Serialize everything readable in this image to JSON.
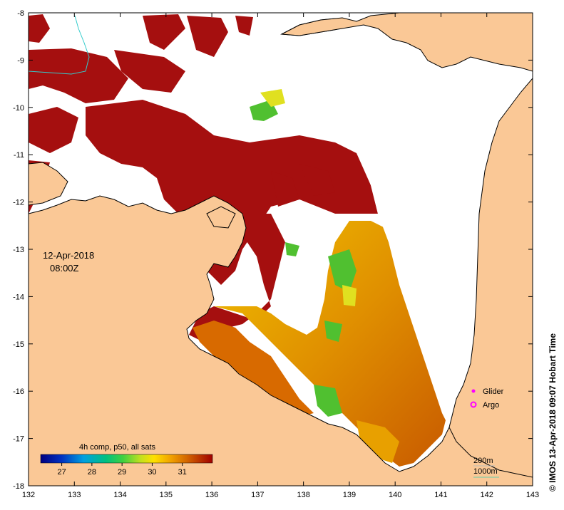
{
  "map": {
    "date": "12-Apr-2018",
    "time": "08:00Z",
    "lon_ticks": [
      "132",
      "133",
      "134",
      "135",
      "136",
      "137",
      "138",
      "139",
      "140",
      "141",
      "142",
      "143"
    ],
    "lat_ticks": [
      "-8",
      "-9",
      "-10",
      "-11",
      "-12",
      "-13",
      "-14",
      "-15",
      "-16",
      "-17",
      "-18"
    ],
    "lon_range": [
      132,
      143
    ],
    "lat_range": [
      -18,
      -8
    ],
    "colors": {
      "land": "#fac896",
      "sea_no_data": "#ffffff",
      "hot": "#a50f0f"
    }
  },
  "colorbar": {
    "title": "4h comp, p50, all sats",
    "ticks": [
      "27",
      "28",
      "29",
      "30",
      "31"
    ],
    "range": [
      26.3,
      32
    ]
  },
  "legend": {
    "glider": "Glider",
    "argo": "Argo",
    "glider_color": "#ff00ff",
    "argo_color": "#ff00ff"
  },
  "bathymetry": {
    "label_200": "200m",
    "label_1000": "1000m",
    "color_200": "#bbbbbb",
    "color_1000": "#66ccaa"
  },
  "credit": "© IMOS 13-Apr-2018 09:07 Hobart Time"
}
